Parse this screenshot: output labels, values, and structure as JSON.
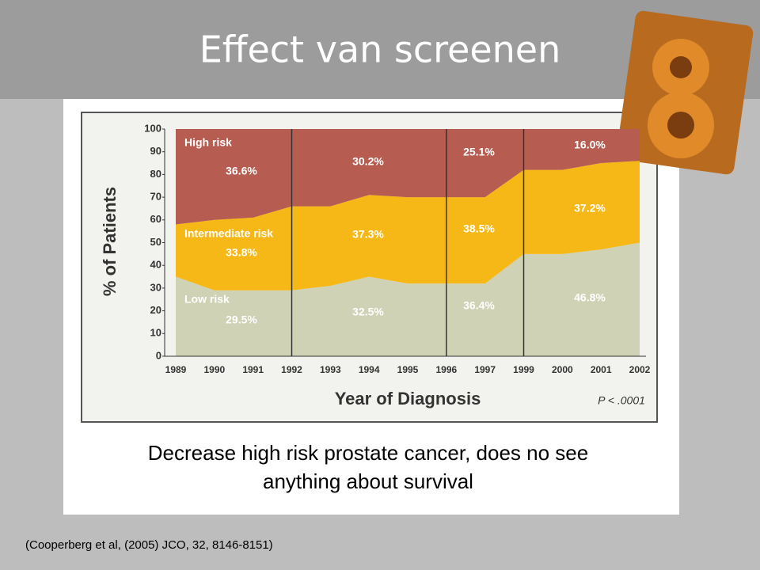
{
  "slide_title": "Effect van screenen",
  "caption": [
    "Decrease high risk prostate cancer,  does no see",
    "anything about survival"
  ],
  "citation": "(Cooperberg et al, (2005) JCO, 32, 8146-8151)",
  "chart_data": {
    "type": "stacked-area",
    "x_label": "Year of Diagnosis",
    "y_label": "% of Patients",
    "categories": [
      "1989",
      "1990",
      "1991",
      "1992",
      "1993",
      "1994",
      "1995",
      "1996",
      "1997",
      "1999",
      "2000",
      "2001",
      "2002"
    ],
    "series": [
      {
        "name": "Low risk",
        "color": "#cfd2b5",
        "values": [
          35,
          29,
          29,
          29,
          31,
          35,
          32,
          32,
          32,
          45,
          45,
          47,
          50
        ]
      },
      {
        "name": "Intermediate risk",
        "color": "#f6b816",
        "values": [
          23,
          31,
          32,
          37,
          35,
          36,
          38,
          38,
          38,
          37,
          37,
          38,
          36
        ]
      },
      {
        "name": "High risk",
        "color": "#b65c50",
        "values": [
          42,
          40,
          39,
          34,
          34,
          29,
          30,
          30,
          30,
          18,
          18,
          15,
          14
        ]
      }
    ],
    "ylim": [
      0,
      100
    ],
    "yticks": [
      0,
      10,
      20,
      30,
      40,
      50,
      60,
      70,
      80,
      90,
      100
    ],
    "annotations": [
      "36.6%",
      "30.2%",
      "25.1%",
      "16.0%",
      "33.8%",
      "37.3%",
      "38.5%",
      "37.2%",
      "29.5%",
      "32.5%",
      "36.4%",
      "46.8%"
    ],
    "note": "P < .0001"
  }
}
